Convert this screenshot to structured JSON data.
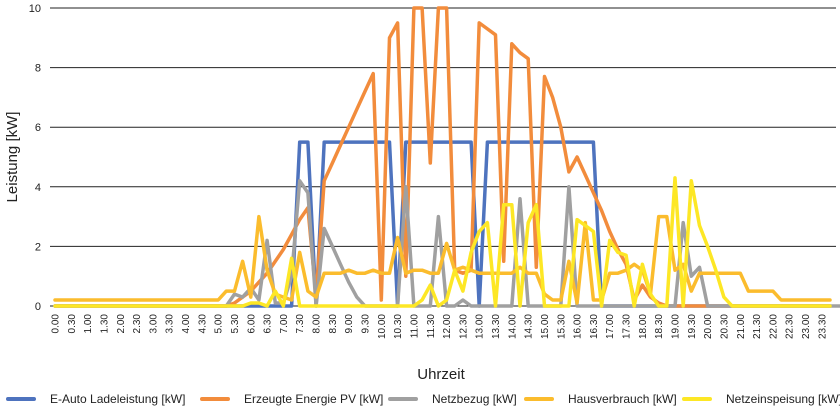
{
  "chart_data": {
    "type": "line",
    "title": "",
    "xlabel": "Uhrzeit",
    "ylabel": "Leistung [kW]",
    "ylim": [
      0,
      10
    ],
    "yticks": [
      "0",
      "2",
      "4",
      "6",
      "8",
      "10"
    ],
    "grid": true,
    "legend_position": "bottom",
    "x_tick_labels": [
      "0.00",
      "0.30",
      "1.00",
      "1.30",
      "2.00",
      "2.30",
      "3.00",
      "3.30",
      "4.00",
      "4.30",
      "5.00",
      "5.30",
      "6.00",
      "6.30",
      "7.00",
      "7.30",
      "8.00",
      "8.30",
      "9.00",
      "9.30",
      "10.00",
      "10.30",
      "11.00",
      "11.30",
      "12.00",
      "12.30",
      "13.00",
      "13.30",
      "14.00",
      "14.30",
      "15.00",
      "15.30",
      "16.00",
      "16.30",
      "17.00",
      "17.30",
      "18.00",
      "18.30",
      "19.00",
      "19.30",
      "20.00",
      "20.30",
      "21.00",
      "21.30",
      "22.00",
      "22.30",
      "23.00",
      "23.30"
    ],
    "points_per_tick": 2,
    "series": [
      {
        "name": "E-Auto Ladeleistung [kW]",
        "color": "#4e73be",
        "values": [
          0,
          0,
          0,
          0,
          0,
          0,
          0,
          0,
          0,
          0,
          0,
          0,
          0,
          0,
          0,
          0,
          0,
          0,
          0,
          0,
          0,
          0,
          0,
          0,
          0,
          0,
          0,
          0,
          0,
          0,
          5.5,
          5.5,
          0,
          5.5,
          5.5,
          5.5,
          5.5,
          5.5,
          5.5,
          5.5,
          5.5,
          5.5,
          0,
          5.5,
          5.5,
          5.5,
          5.5,
          5.5,
          5.5,
          5.5,
          5.5,
          5.5,
          0,
          5.5,
          5.5,
          5.5,
          5.5,
          5.5,
          5.5,
          5.5,
          5.5,
          5.5,
          5.5,
          5.5,
          5.5,
          5.5,
          5.5,
          0,
          0,
          0,
          0,
          0,
          0,
          0,
          0,
          0,
          0,
          0,
          0,
          0,
          0,
          0,
          0,
          0,
          0,
          0,
          0,
          0,
          0,
          0,
          0,
          0,
          0,
          0,
          0,
          0
        ]
      },
      {
        "name": "Erzeugte Energie PV [kW]",
        "color": "#f28c3c",
        "values": [
          0,
          0,
          0,
          0,
          0,
          0,
          0,
          0,
          0,
          0,
          0,
          0,
          0,
          0,
          0,
          0,
          0,
          0,
          0,
          0,
          0,
          0,
          0.1,
          0.3,
          0.5,
          0.8,
          1.1,
          1.5,
          1.9,
          2.4,
          2.9,
          3.3,
          0.3,
          4.2,
          4.8,
          5.4,
          6.0,
          6.6,
          7.2,
          7.8,
          0.2,
          9.0,
          9.5,
          1.0,
          10,
          10,
          4.8,
          10,
          10,
          1.2,
          1.1,
          1.2,
          9.5,
          9.3,
          9.1,
          1.5,
          8.8,
          8.5,
          8.3,
          1.3,
          7.7,
          7.0,
          6.0,
          4.5,
          5.0,
          4.4,
          3.8,
          3.2,
          2.5,
          1.9,
          1.4,
          0.2,
          0.7,
          0.3,
          0.1,
          0,
          0,
          0,
          0,
          0,
          0,
          0,
          0,
          0,
          0,
          0,
          0,
          0,
          0,
          0,
          0,
          0,
          0,
          0,
          0,
          0
        ]
      },
      {
        "name": "Netzbezug [kW]",
        "color": "#a0a0a0",
        "values": [
          0,
          0,
          0,
          0,
          0,
          0,
          0,
          0,
          0,
          0,
          0,
          0,
          0,
          0,
          0,
          0,
          0,
          0,
          0,
          0,
          0,
          0,
          0.4,
          0.3,
          0.6,
          0.2,
          2.2,
          0.1,
          0.1,
          1.0,
          4.2,
          3.8,
          0,
          2.6,
          2.0,
          1.4,
          0.8,
          0.3,
          0,
          0,
          0,
          0,
          0,
          4.0,
          0,
          0,
          0,
          3.0,
          0,
          0,
          0.2,
          0,
          0,
          0,
          0,
          0,
          0,
          3.6,
          0,
          0,
          0,
          0,
          0,
          4.0,
          0,
          0,
          0,
          0,
          0,
          0,
          0,
          0,
          0,
          0,
          0,
          0,
          0,
          2.8,
          1.0,
          1.3,
          0,
          0,
          0,
          0,
          0,
          0,
          0,
          0,
          0,
          0,
          0,
          0,
          0,
          0,
          0,
          0,
          0,
          0
        ]
      },
      {
        "name": "Hausverbrauch [kW]",
        "color": "#fbbc2d",
        "values": [
          0.2,
          0.2,
          0.2,
          0.2,
          0.2,
          0.2,
          0.2,
          0.2,
          0.2,
          0.2,
          0.2,
          0.2,
          0.2,
          0.2,
          0.2,
          0.2,
          0.2,
          0.2,
          0.2,
          0.2,
          0.2,
          0.5,
          0.5,
          1.5,
          0.3,
          3.0,
          1.2,
          0.4,
          0.3,
          0.2,
          1.8,
          0.5,
          0.3,
          1.1,
          1.1,
          1.1,
          1.2,
          1.1,
          1.1,
          1.2,
          1.1,
          1.1,
          2.3,
          1.1,
          1.2,
          1.2,
          1.1,
          1.1,
          2.1,
          1.2,
          1.3,
          1.2,
          1.1,
          1.1,
          1.1,
          1.1,
          1.1,
          1.3,
          1.1,
          1.1,
          0.4,
          0.2,
          0.2,
          1.5,
          0.1,
          2.8,
          0.2,
          0.2,
          1.1,
          1.1,
          1.2,
          1.4,
          1.2,
          0.4,
          3.0,
          3.0,
          1.2,
          1.4,
          0.5,
          1.1,
          1.1,
          1.1,
          1.1,
          1.1,
          1.1,
          0.5,
          0.5,
          0.5,
          0.5,
          0.2,
          0.2,
          0.2,
          0.2,
          0.2,
          0.2,
          0.2
        ]
      },
      {
        "name": "Netzeinspeisung [kW]",
        "color": "#fde725",
        "values": [
          0,
          0,
          0,
          0,
          0,
          0,
          0,
          0,
          0,
          0,
          0,
          0,
          0,
          0,
          0,
          0,
          0,
          0,
          0,
          0,
          0,
          0,
          0,
          0,
          0.1,
          0.1,
          0,
          0.5,
          0,
          1.6,
          0,
          0,
          0,
          0,
          0,
          0,
          0,
          0,
          0,
          0,
          0,
          0,
          0,
          0,
          0,
          0.2,
          0.7,
          0,
          0.2,
          1.2,
          0.5,
          1.8,
          2.5,
          2.8,
          0,
          3.4,
          3.4,
          0,
          2.8,
          3.4,
          0,
          0,
          0,
          0,
          2.9,
          2.7,
          2.5,
          0,
          2.2,
          1.8,
          1.7,
          0,
          1.4,
          0.4,
          0,
          0,
          4.3,
          0,
          4.2,
          2.7,
          2.0,
          1.2,
          0.3,
          0,
          0,
          0,
          0,
          0,
          0,
          0,
          0,
          0,
          0,
          0,
          0,
          0
        ]
      }
    ]
  }
}
